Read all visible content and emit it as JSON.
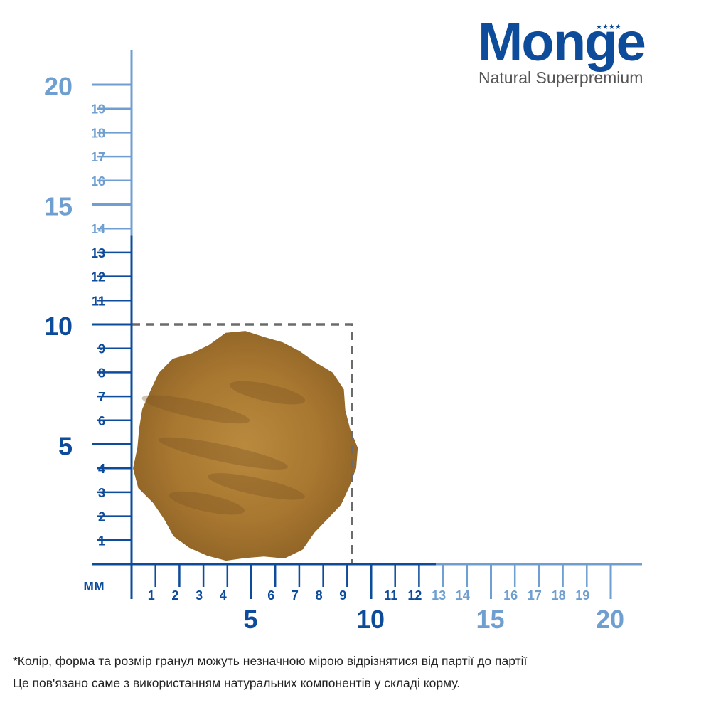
{
  "brand": {
    "name": "Monge",
    "tagline": "Natural Superpremium",
    "stars": "★★★★"
  },
  "ruler": {
    "unit_label": "мм",
    "y_labels": [
      "1",
      "2",
      "3",
      "4",
      "5",
      "6",
      "7",
      "8",
      "9",
      "10",
      "11",
      "12",
      "13",
      "14",
      "15",
      "16",
      "17",
      "18",
      "19",
      "20"
    ],
    "x_labels": [
      "1",
      "2",
      "3",
      "4",
      "5",
      "6",
      "7",
      "8",
      "9",
      "10",
      "11",
      "12",
      "13",
      "14",
      "15",
      "16",
      "17",
      "18",
      "19",
      "20"
    ],
    "kibble_box_size_mm": 10
  },
  "note": {
    "line1": "*Колір, форма та розмір гранул можуть незначною мірою відрізнятися від партії до партії",
    "line2": "Це пов'язано саме з використанням натуральних компонентів у складі корму."
  },
  "colors": {
    "dark_blue": "#0d4b9b",
    "light_blue": "#6f9fd0",
    "kibble": "#a9782f",
    "dashed_box": "#6b6b6b"
  }
}
